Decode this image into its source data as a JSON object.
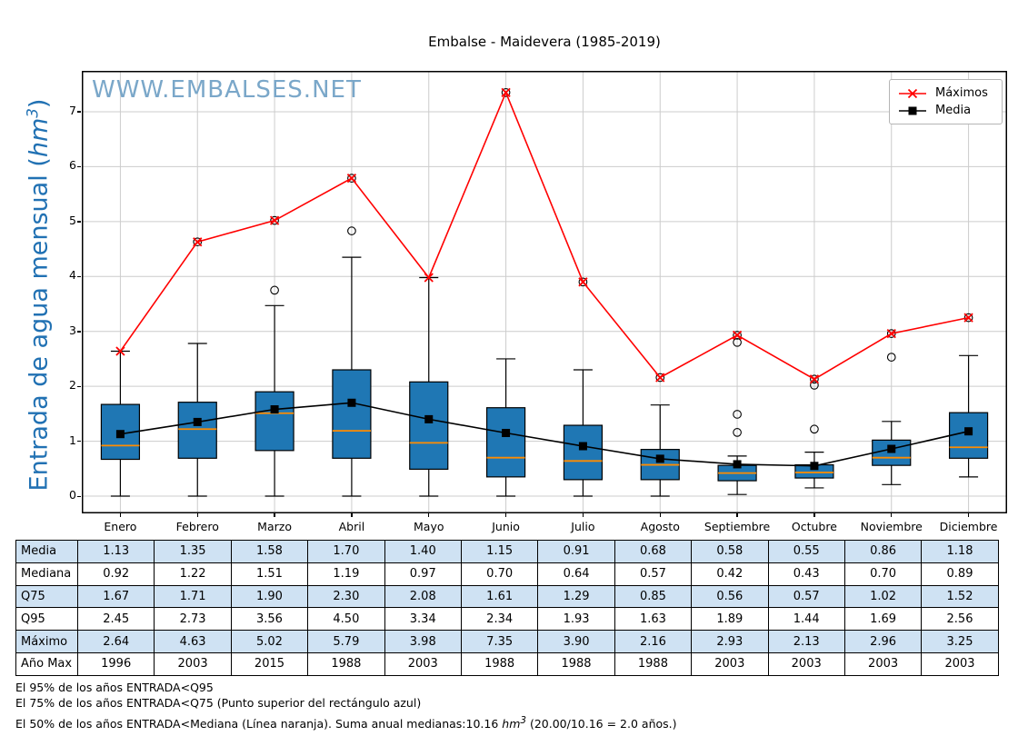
{
  "title": "Embalse - Maidevera (1985-2019)",
  "watermark": "WWW.EMBALSES.NET",
  "ylabel": {
    "prefix": "Entrada de agua mensual (",
    "unit": "hm",
    "sup": "3",
    "suffix": ")"
  },
  "legend": {
    "maximos": "Máximos",
    "media": "Media"
  },
  "colors": {
    "box_fill": "#1f77b4",
    "median_line": "#ff8c00",
    "max_line": "#ff0000",
    "mean_line": "#000000",
    "grid": "#cccccc",
    "watermark": "#7aa7c9",
    "ylabel": "#2171b3",
    "table_row_blue": "#cfe2f3"
  },
  "chart_data": {
    "type": "boxplot_with_lines",
    "title": "Embalse - Maidevera (1985-2019)",
    "ylabel": "Entrada de agua mensual (hm3)",
    "grid": true,
    "legend_position": "upper right",
    "categories": [
      "Enero",
      "Febrero",
      "Marzo",
      "Abril",
      "Mayo",
      "Junio",
      "Julio",
      "Agosto",
      "Septiembre",
      "Octubre",
      "Noviembre",
      "Diciembre"
    ],
    "y_ticks": [
      0,
      1,
      2,
      3,
      4,
      5,
      6,
      7
    ],
    "y_range": [
      -0.31,
      7.74
    ],
    "series": [
      {
        "name": "Máximos",
        "style": "red line, x markers",
        "values": [
          2.64,
          4.63,
          5.02,
          5.79,
          3.98,
          7.35,
          3.9,
          2.16,
          2.93,
          2.13,
          2.96,
          3.25
        ]
      },
      {
        "name": "Media",
        "style": "black line, square markers",
        "values": [
          1.13,
          1.35,
          1.58,
          1.7,
          1.4,
          1.15,
          0.91,
          0.68,
          0.58,
          0.55,
          0.86,
          1.18
        ]
      }
    ],
    "boxes": {
      "median": [
        0.92,
        1.22,
        1.51,
        1.19,
        0.97,
        0.7,
        0.64,
        0.57,
        0.42,
        0.43,
        0.7,
        0.89
      ],
      "q25": [
        0.67,
        0.69,
        0.83,
        0.69,
        0.49,
        0.35,
        0.3,
        0.3,
        0.28,
        0.33,
        0.56,
        0.69
      ],
      "q75": [
        1.67,
        1.71,
        1.9,
        2.3,
        2.08,
        1.61,
        1.29,
        0.85,
        0.56,
        0.57,
        1.02,
        1.52
      ],
      "whisker_low": [
        0.0,
        0.0,
        0.0,
        0.0,
        0.0,
        0.0,
        0.0,
        0.0,
        0.03,
        0.15,
        0.21,
        0.35
      ],
      "whisker_high": [
        2.64,
        2.78,
        3.47,
        4.35,
        3.98,
        2.5,
        2.3,
        1.66,
        0.73,
        0.8,
        1.36,
        2.56
      ],
      "outliers": [
        [],
        [
          4.63
        ],
        [
          3.75,
          5.02
        ],
        [
          4.83,
          5.79
        ],
        [],
        [
          7.35
        ],
        [
          3.9
        ],
        [
          2.16
        ],
        [
          1.16,
          1.49,
          2.8,
          2.93
        ],
        [
          1.22,
          2.02,
          2.13
        ],
        [
          2.53,
          2.96
        ],
        [
          3.25
        ]
      ]
    }
  },
  "table": {
    "row_labels": [
      "Media",
      "Mediana",
      "Q75",
      "Q95",
      "Máximo",
      "Año Max"
    ],
    "rows": [
      [
        "1.13",
        "1.35",
        "1.58",
        "1.70",
        "1.40",
        "1.15",
        "0.91",
        "0.68",
        "0.58",
        "0.55",
        "0.86",
        "1.18"
      ],
      [
        "0.92",
        "1.22",
        "1.51",
        "1.19",
        "0.97",
        "0.70",
        "0.64",
        "0.57",
        "0.42",
        "0.43",
        "0.70",
        "0.89"
      ],
      [
        "1.67",
        "1.71",
        "1.90",
        "2.30",
        "2.08",
        "1.61",
        "1.29",
        "0.85",
        "0.56",
        "0.57",
        "1.02",
        "1.52"
      ],
      [
        "2.45",
        "2.73",
        "3.56",
        "4.50",
        "3.34",
        "2.34",
        "1.93",
        "1.63",
        "1.89",
        "1.44",
        "1.69",
        "2.56"
      ],
      [
        "2.64",
        "4.63",
        "5.02",
        "5.79",
        "3.98",
        "7.35",
        "3.90",
        "2.16",
        "2.93",
        "2.13",
        "2.96",
        "3.25"
      ],
      [
        "1996",
        "2003",
        "2015",
        "1988",
        "2003",
        "1988",
        "1988",
        "1988",
        "2003",
        "2003",
        "2003",
        "2003"
      ]
    ]
  },
  "footnotes": {
    "line1": "El 95% de los años ENTRADA<Q95",
    "line2": "El 75% de los años ENTRADA<Q75 (Punto superior del rectángulo azul)",
    "line3_prefix": " El 50% de los años ENTRADA<Mediana (Línea naranja). Suma anual medianas:10.16 ",
    "line3_unit": "hm",
    "line3_sup": "3",
    "line3_suffix": " (20.00/10.16 = 2.0 años.)"
  }
}
